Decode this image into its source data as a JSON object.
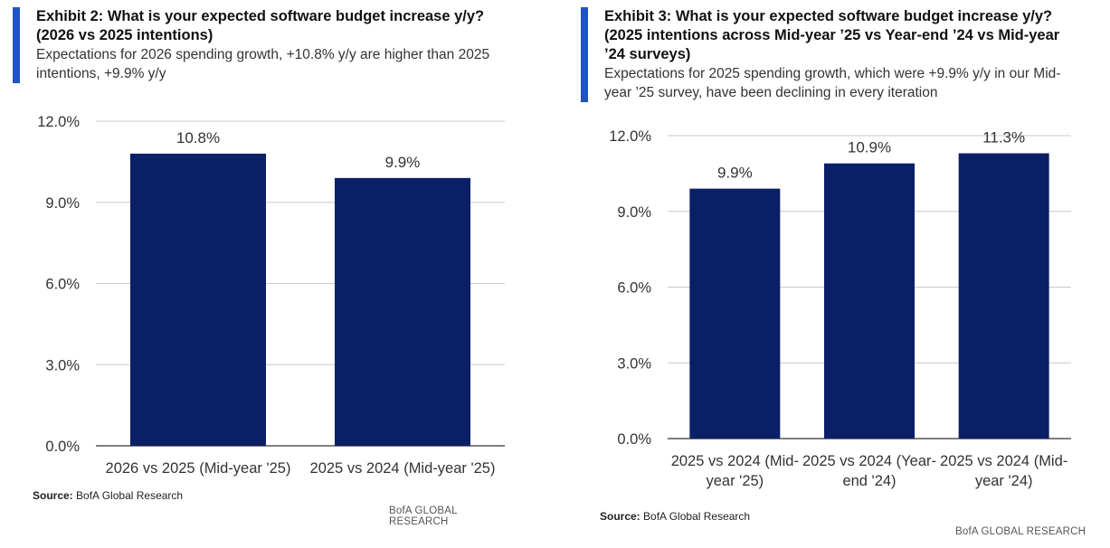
{
  "left": {
    "title": "Exhibit 2: What is your expected software budget increase y/y? (2026 vs 2025 intentions)",
    "subtitle": "Expectations for 2026 spending growth, +10.8% y/y are higher than 2025 intentions, +9.9% y/y",
    "source_label": "Source:",
    "source_text": "BofA Global Research",
    "footer": "BofA GLOBAL RESEARCH"
  },
  "right": {
    "title": "Exhibit 3: What is your expected software budget increase y/y? (2025 intentions across Mid-year ’25 vs Year-end ’24 vs Mid-year ’24 surveys)",
    "subtitle": "Expectations for 2025 spending growth, which were  +9.9% y/y in our Mid-year ’25 survey, have been declining in every iteration",
    "source_label": "Source:",
    "source_text": "BofA Global Research",
    "footer": "BofA GLOBAL RESEARCH"
  },
  "colors": {
    "bar": "#0b1f66",
    "accent": "#1f55c0",
    "grid": "#c8c8c8"
  },
  "chart_data": [
    {
      "type": "bar",
      "title": "Exhibit 2: What is your expected software budget increase y/y? (2026 vs 2025 intentions)",
      "categories": [
        [
          "2026 vs 2025 (Mid-year '25)"
        ],
        [
          "2025 vs 2024 (Mid-year '25)"
        ]
      ],
      "values": [
        10.8,
        9.9
      ],
      "data_labels": [
        "10.8%",
        "9.9%"
      ],
      "yticks": [
        0,
        3,
        6,
        9,
        12
      ],
      "ytick_labels": [
        "0.0%",
        "3.0%",
        "6.0%",
        "9.0%",
        "12.0%"
      ],
      "ylim": [
        0,
        12
      ],
      "xlabel": "",
      "ylabel": "",
      "grid": true
    },
    {
      "type": "bar",
      "title": "Exhibit 3: What is your expected software budget increase y/y? (2025 intentions across Mid-year ’25 vs Year-end ’24 vs Mid-year ’24 surveys)",
      "categories": [
        [
          "2025 vs 2024 (Mid-",
          "year '25)"
        ],
        [
          "2025 vs 2024 (Year-",
          "end '24)"
        ],
        [
          "2025 vs 2024 (Mid-",
          "year '24)"
        ]
      ],
      "values": [
        9.9,
        10.9,
        11.3
      ],
      "data_labels": [
        "9.9%",
        "10.9%",
        "11.3%"
      ],
      "yticks": [
        0,
        3,
        6,
        9,
        12
      ],
      "ytick_labels": [
        "0.0%",
        "3.0%",
        "6.0%",
        "9.0%",
        "12.0%"
      ],
      "ylim": [
        0,
        12
      ],
      "xlabel": "",
      "ylabel": "",
      "grid": true
    }
  ]
}
